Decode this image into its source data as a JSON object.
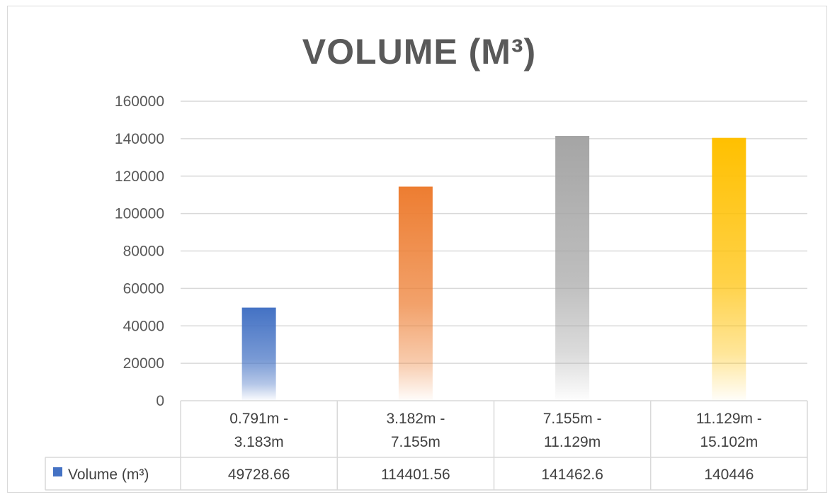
{
  "chart_data": {
    "type": "bar",
    "title": "VOLUME (M³)",
    "categories": [
      [
        "0.791m -",
        "3.183m"
      ],
      [
        "3.182m -",
        "7.155m"
      ],
      [
        "7.155m -",
        "11.129m"
      ],
      [
        "11.129m -",
        "15.102m"
      ]
    ],
    "series": [
      {
        "name": "Volume (m³)",
        "values": [
          49728.66,
          114401.56,
          141462.6,
          140446
        ],
        "value_labels": [
          "49728.66",
          "114401.56",
          "141462.6",
          "140446"
        ],
        "legend_color": "#4472c4"
      }
    ],
    "bar_colors": [
      "#4472c4",
      "#ed7d31",
      "#a5a5a5",
      "#ffc000"
    ],
    "ylim": [
      0,
      160000
    ],
    "yticks": [
      0,
      20000,
      40000,
      60000,
      80000,
      100000,
      120000,
      140000,
      160000
    ],
    "grid": true,
    "data_table": true
  }
}
